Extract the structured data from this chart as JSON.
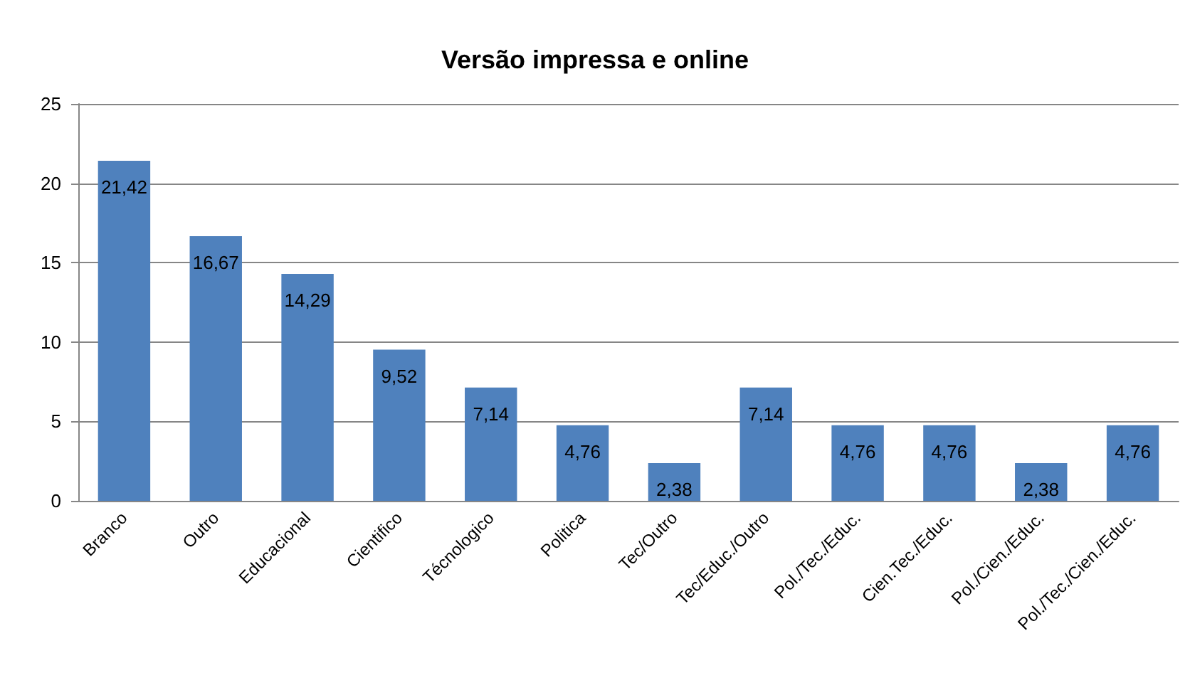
{
  "chart_data": {
    "type": "bar",
    "title": "Versão impressa e online",
    "categories": [
      "Branco",
      "Outro",
      "Educacional",
      "Cientifico",
      "Técnologico",
      "Politica",
      "Tec/Outro",
      "Tec/Educ./Outro",
      "Pol./Tec./Educ.",
      "Cien.Tec./Educ.",
      "Pol./Cien./Educ.",
      "Pol./Tec./Cien./Educ."
    ],
    "values": [
      21.42,
      16.67,
      14.29,
      9.52,
      7.14,
      4.76,
      2.38,
      7.14,
      4.76,
      4.76,
      2.38,
      4.76
    ],
    "value_labels": [
      "21,42",
      "16,67",
      "14,29",
      "9,52",
      "7,14",
      "4,76",
      "2,38",
      "7,14",
      "4,76",
      "4,76",
      "2,38",
      "4,76"
    ],
    "color": "#4f81bd",
    "ylim": [
      0,
      25
    ],
    "yticks": [
      0,
      5,
      10,
      15,
      20,
      25
    ],
    "grid": "y"
  }
}
